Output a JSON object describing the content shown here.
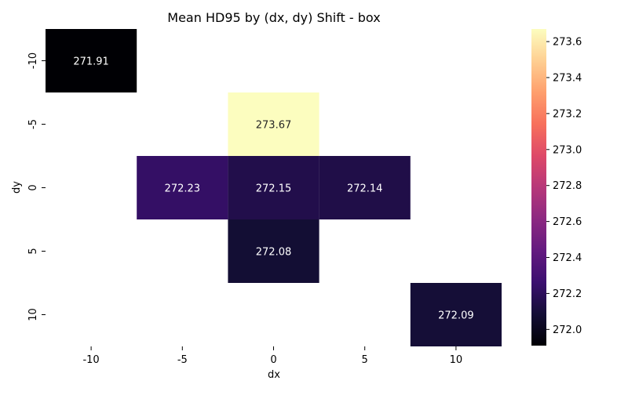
{
  "chart_data": {
    "type": "heatmap",
    "title": "Mean HD95 by (dx, dy) Shift - box",
    "xlabel": "dx",
    "ylabel": "dy",
    "x_categories": [
      "-10",
      "-5",
      "0",
      "5",
      "10"
    ],
    "y_categories": [
      "-10",
      "-5",
      "0",
      "5",
      "10"
    ],
    "cells": [
      {
        "dx": "-10",
        "dy": "-10",
        "value": 271.91,
        "label": "271.91"
      },
      {
        "dx": "0",
        "dy": "-5",
        "value": 273.67,
        "label": "273.67"
      },
      {
        "dx": "-5",
        "dy": "0",
        "value": 272.23,
        "label": "272.23"
      },
      {
        "dx": "0",
        "dy": "0",
        "value": 272.15,
        "label": "272.15"
      },
      {
        "dx": "5",
        "dy": "0",
        "value": 272.14,
        "label": "272.14"
      },
      {
        "dx": "0",
        "dy": "5",
        "value": 272.08,
        "label": "272.08"
      },
      {
        "dx": "10",
        "dy": "10",
        "value": 272.09,
        "label": "272.09"
      }
    ],
    "colorbar": {
      "colormap": "magma",
      "vmin": 271.91,
      "vmax": 273.67,
      "ticks": [
        "272.0",
        "272.2",
        "272.4",
        "272.6",
        "272.8",
        "273.0",
        "273.2",
        "273.4",
        "273.6"
      ]
    },
    "grid": false,
    "legend": "colorbar-right"
  }
}
